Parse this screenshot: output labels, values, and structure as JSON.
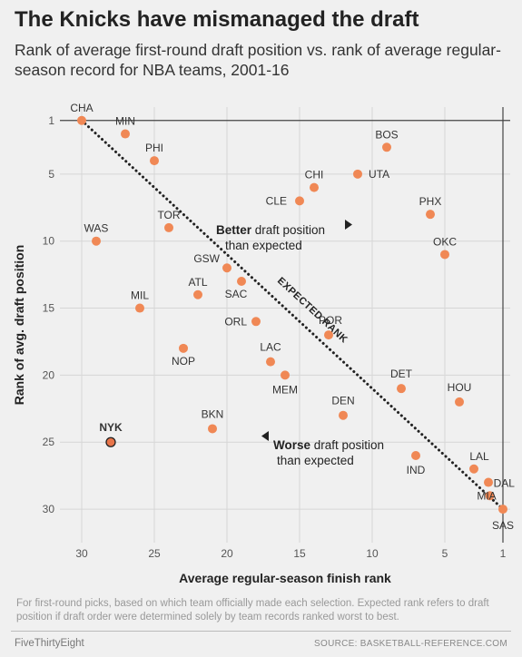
{
  "header": {
    "title": "The Knicks have mismanaged the draft",
    "subtitle": "Rank of average first-round draft position vs. rank of average regular-season record for NBA teams, 2001-16"
  },
  "chart_data": {
    "type": "scatter",
    "xlabel": "Average regular-season finish rank",
    "ylabel": "Rank of avg. draft position",
    "xlim": [
      31.5,
      0.5
    ],
    "ylim": [
      0,
      32.5
    ],
    "x_ticks": [
      30,
      25,
      20,
      15,
      10,
      5,
      1
    ],
    "y_ticks": [
      1,
      5,
      10,
      15,
      20,
      25,
      30
    ],
    "x_tick_labels": [
      "30",
      "25",
      "20",
      "15",
      "10",
      "5",
      "1"
    ],
    "y_tick_labels": [
      "1",
      "5",
      "10",
      "15",
      "20",
      "25",
      "30"
    ],
    "grid": true,
    "colors": {
      "point": "#f08855",
      "highlight": "#e8754a",
      "line": "#222222"
    },
    "diagonal_label": "EXPECTED RANK",
    "annotations": {
      "better_bold": "Better",
      "better_rest": "draft position",
      "better_line2": "than expected",
      "worse_bold": "Worse",
      "worse_rest": "draft position",
      "worse_line2": "than expected"
    },
    "points": [
      {
        "team": "CHA",
        "x": 30,
        "y": 1
      },
      {
        "team": "MIN",
        "x": 27,
        "y": 2
      },
      {
        "team": "PHI",
        "x": 25,
        "y": 4
      },
      {
        "team": "BOS",
        "x": 9,
        "y": 3
      },
      {
        "team": "CHI",
        "x": 14,
        "y": 6
      },
      {
        "team": "UTA",
        "x": 11,
        "y": 5
      },
      {
        "team": "CLE",
        "x": 15,
        "y": 7
      },
      {
        "team": "PHX",
        "x": 6,
        "y": 8
      },
      {
        "team": "TOR",
        "x": 24,
        "y": 9
      },
      {
        "team": "WAS",
        "x": 29,
        "y": 10
      },
      {
        "team": "OKC",
        "x": 5,
        "y": 11
      },
      {
        "team": "GSW",
        "x": 20,
        "y": 12
      },
      {
        "team": "SAC",
        "x": 19,
        "y": 13
      },
      {
        "team": "ATL",
        "x": 22,
        "y": 14
      },
      {
        "team": "MIL",
        "x": 26,
        "y": 15
      },
      {
        "team": "ORL",
        "x": 18,
        "y": 16
      },
      {
        "team": "POR",
        "x": 13,
        "y": 17
      },
      {
        "team": "NOP",
        "x": 23,
        "y": 18
      },
      {
        "team": "LAC",
        "x": 17,
        "y": 19
      },
      {
        "team": "MEM",
        "x": 16,
        "y": 20
      },
      {
        "team": "DET",
        "x": 8,
        "y": 21
      },
      {
        "team": "HOU",
        "x": 4,
        "y": 22
      },
      {
        "team": "DEN",
        "x": 12,
        "y": 23
      },
      {
        "team": "BKN",
        "x": 21,
        "y": 24
      },
      {
        "team": "NYK",
        "x": 28,
        "y": 25,
        "highlight": true
      },
      {
        "team": "IND",
        "x": 7,
        "y": 26
      },
      {
        "team": "LAL",
        "x": 3,
        "y": 27
      },
      {
        "team": "MIA",
        "x": 2,
        "y": 28
      },
      {
        "team": "DAL",
        "x": 1.9,
        "y": 29
      },
      {
        "team": "SAS",
        "x": 1,
        "y": 30
      }
    ]
  },
  "footer": {
    "note": "For first-round picks, based on which team officially made each selection. Expected rank refers to draft position if draft order were determined solely by team records ranked worst to best.",
    "brand": "FiveThirtyEight",
    "source": "SOURCE: BASKETBALL-REFERENCE.COM"
  }
}
